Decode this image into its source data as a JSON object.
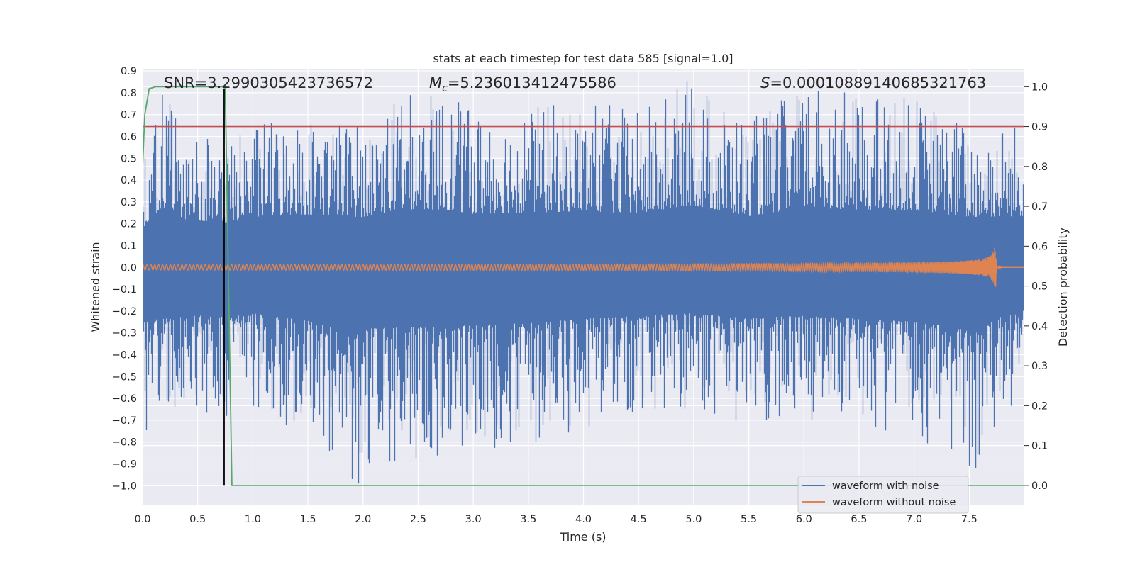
{
  "chart_data": {
    "type": "line",
    "title": "stats at each timestep for test data 585 [signal=1.0]",
    "xlabel": "Time (s)",
    "ylabel": "Whitened strain",
    "y2label": "Detection probability",
    "xlim": [
      0.0,
      8.0
    ],
    "ylim": [
      -1.09,
      0.91
    ],
    "y2lim": [
      -0.05,
      1.045
    ],
    "x_ticks": [
      "0.0",
      "0.5",
      "1.0",
      "1.5",
      "2.0",
      "2.5",
      "3.0",
      "3.5",
      "4.0",
      "4.5",
      "5.0",
      "5.5",
      "6.0",
      "6.5",
      "7.0",
      "7.5"
    ],
    "y_ticks": [
      "0.9",
      "0.8",
      "0.7",
      "0.6",
      "0.5",
      "0.4",
      "0.3",
      "0.2",
      "0.1",
      "0.0",
      "−0.1",
      "−0.2",
      "−0.3",
      "−0.4",
      "−0.5",
      "−0.6",
      "−0.7",
      "−0.8",
      "−0.9",
      "−1.0"
    ],
    "y2_ticks": [
      "1.0",
      "0.9",
      "0.8",
      "0.7",
      "0.6",
      "0.5",
      "0.4",
      "0.3",
      "0.2",
      "0.1",
      "0.0"
    ],
    "stats": {
      "snr": "SNR=3.2990305423736572",
      "mc_symbol": "M",
      "mc_sub": "c",
      "mc_value": "=5.236013412475586",
      "s_symbol": "S",
      "s_value": "=0.00010889140685321763"
    },
    "series": [
      {
        "name": "waveform with noise",
        "color": "#4c72b0",
        "axis": "left",
        "envelope_top": [
          [
            0.0,
            0.4
          ],
          [
            0.18,
            0.79
          ],
          [
            0.4,
            0.55
          ],
          [
            0.78,
            0.5
          ],
          [
            1.0,
            0.6
          ],
          [
            1.5,
            0.65
          ],
          [
            2.0,
            0.6
          ],
          [
            2.35,
            0.74
          ],
          [
            2.72,
            0.74
          ],
          [
            3.0,
            0.66
          ],
          [
            3.5,
            0.68
          ],
          [
            4.0,
            0.71
          ],
          [
            4.5,
            0.66
          ],
          [
            4.98,
            0.82
          ],
          [
            5.5,
            0.62
          ],
          [
            6.04,
            0.78
          ],
          [
            6.5,
            0.73
          ],
          [
            7.0,
            0.73
          ],
          [
            7.5,
            0.6
          ],
          [
            8.0,
            0.62
          ]
        ],
        "envelope_bottom": [
          [
            0.0,
            -0.74
          ],
          [
            0.5,
            -0.64
          ],
          [
            0.66,
            -0.67
          ],
          [
            1.0,
            -0.6
          ],
          [
            1.5,
            -0.74
          ],
          [
            1.96,
            -0.99
          ],
          [
            2.05,
            -0.88
          ],
          [
            3.5,
            -0.78
          ],
          [
            4.0,
            -0.7
          ],
          [
            4.5,
            -0.65
          ],
          [
            5.0,
            -0.6
          ],
          [
            5.5,
            -0.68
          ],
          [
            6.0,
            -0.65
          ],
          [
            7.0,
            -0.75
          ],
          [
            7.56,
            -0.92
          ],
          [
            7.8,
            -0.64
          ],
          [
            8.0,
            -0.55
          ]
        ],
        "peaks": [
          [
            0.18,
            0.79
          ],
          [
            2.35,
            0.74
          ],
          [
            2.72,
            0.74
          ],
          [
            4.98,
            0.82
          ],
          [
            6.04,
            0.78
          ],
          [
            1.96,
            -0.99
          ],
          [
            2.05,
            -0.88
          ],
          [
            7.56,
            -0.92
          ],
          [
            3.6,
            -0.78
          ],
          [
            5.1,
            -0.65
          ]
        ]
      },
      {
        "name": "waveform without noise",
        "color": "#dd8452",
        "axis": "left",
        "amplitude_start": 0.012,
        "amplitude_peak": 0.09,
        "merger_time": 7.74,
        "end_time": 7.8
      },
      {
        "color": "#55a868",
        "axis": "right",
        "points": [
          [
            0.0,
            0.8
          ],
          [
            0.02,
            0.93
          ],
          [
            0.06,
            0.995
          ],
          [
            0.12,
            1.0
          ],
          [
            0.75,
            1.0
          ],
          [
            0.78,
            0.5
          ],
          [
            0.81,
            0.0
          ],
          [
            8.0,
            0.0
          ]
        ]
      },
      {
        "color": "#c44e52",
        "axis": "right",
        "type": "threshold",
        "value": 0.9
      },
      {
        "color": "#000000",
        "axis": "left",
        "type": "vertical",
        "x": 0.74,
        "y_from": -1.0,
        "y_to": 0.82
      }
    ],
    "legend": {
      "position": "lower-right",
      "entries": [
        "waveform with noise",
        "waveform without noise"
      ]
    },
    "grid": true,
    "colors": {
      "axes_background": "#eaeaf2",
      "grid": "#ffffff",
      "text": "#262626"
    }
  }
}
